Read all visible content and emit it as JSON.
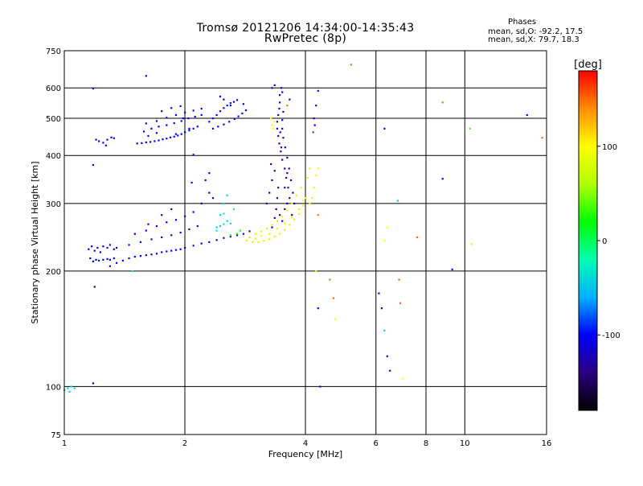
{
  "chart_data": {
    "type": "scatter",
    "title": "Tromsø 20121206 14:34:00-14:35:43",
    "subtitle": "RwPretec (8p)",
    "xlabel": "Frequency [MHz]",
    "ylabel": "Stationary phase Virtual Height [km]",
    "x_scale": "log",
    "y_scale": "log",
    "xlim": [
      1,
      16
    ],
    "ylim": [
      75,
      750
    ],
    "x_ticks": [
      1,
      2,
      4,
      6,
      8,
      10,
      16
    ],
    "y_ticks": [
      75,
      100,
      200,
      300,
      400,
      500,
      600,
      750
    ],
    "grid": true,
    "phase_stats": {
      "heading": "Phases",
      "line_o": "mean, sd,O: -92.2, 17.5",
      "line_x": "mean, sd,X: 79.7, 18.3"
    },
    "colorbar": {
      "label": "[deg]",
      "range": [
        -180,
        180
      ],
      "ticks": [
        100,
        0,
        -100
      ],
      "colormap": "rainbow",
      "colors": [
        "#000000",
        "#2b0080",
        "#0000ff",
        "#00b0ff",
        "#00ffb0",
        "#00ff00",
        "#b0ff00",
        "#ffff00",
        "#ff8c00",
        "#ff0000"
      ]
    },
    "point_format": "[frequency MHz, virtual height km, phase deg]",
    "points": [
      [
        1.0,
        98,
        -40
      ],
      [
        1.02,
        99,
        -40
      ],
      [
        1.04,
        100,
        -40
      ],
      [
        1.03,
        97,
        -40
      ],
      [
        1.06,
        99,
        -40
      ],
      [
        1.18,
        598,
        -100
      ],
      [
        1.18,
        378,
        -100
      ],
      [
        1.19,
        182,
        -110
      ],
      [
        1.18,
        102,
        -110
      ],
      [
        1.15,
        228,
        -100
      ],
      [
        1.17,
        232,
        -100
      ],
      [
        1.19,
        226,
        -100
      ],
      [
        1.21,
        230,
        -100
      ],
      [
        1.23,
        224,
        -100
      ],
      [
        1.25,
        232,
        -100
      ],
      [
        1.28,
        230,
        -100
      ],
      [
        1.3,
        234,
        -100
      ],
      [
        1.33,
        228,
        -100
      ],
      [
        1.16,
        216,
        -100
      ],
      [
        1.18,
        212,
        -100
      ],
      [
        1.2,
        214,
        -100
      ],
      [
        1.22,
        213,
        -100
      ],
      [
        1.25,
        214,
        -100
      ],
      [
        1.28,
        215,
        -100
      ],
      [
        1.3,
        214,
        -100
      ],
      [
        1.33,
        216,
        -100
      ],
      [
        1.2,
        440,
        -110
      ],
      [
        1.22,
        436,
        -110
      ],
      [
        1.25,
        432,
        -110
      ],
      [
        1.28,
        440,
        -110
      ],
      [
        1.31,
        446,
        -110
      ],
      [
        1.33,
        444,
        -110
      ],
      [
        1.27,
        425,
        -110
      ],
      [
        1.48,
        200,
        -30
      ],
      [
        1.6,
        645,
        -110
      ],
      [
        1.52,
        430,
        -100
      ],
      [
        1.56,
        431,
        -100
      ],
      [
        1.6,
        433,
        -100
      ],
      [
        1.64,
        434,
        -100
      ],
      [
        1.68,
        436,
        -100
      ],
      [
        1.72,
        438,
        -100
      ],
      [
        1.76,
        441,
        -100
      ],
      [
        1.8,
        443,
        -100
      ],
      [
        1.84,
        446,
        -100
      ],
      [
        1.88,
        448,
        -100
      ],
      [
        1.92,
        451,
        -100
      ],
      [
        1.96,
        455,
        -100
      ],
      [
        2.0,
        460,
        -100
      ],
      [
        2.05,
        465,
        -100
      ],
      [
        2.1,
        470,
        -100
      ],
      [
        2.15,
        476,
        -100
      ],
      [
        1.58,
        462,
        -100
      ],
      [
        1.65,
        470,
        -100
      ],
      [
        1.72,
        476,
        -100
      ],
      [
        1.8,
        480,
        -100
      ],
      [
        1.88,
        486,
        -100
      ],
      [
        1.96,
        492,
        -100
      ],
      [
        2.04,
        500,
        -100
      ],
      [
        2.12,
        505,
        -100
      ],
      [
        2.2,
        510,
        -100
      ],
      [
        1.6,
        485,
        -100
      ],
      [
        1.7,
        492,
        -100
      ],
      [
        1.8,
        502,
        -100
      ],
      [
        1.9,
        510,
        -100
      ],
      [
        2.0,
        518,
        -100
      ],
      [
        2.1,
        524,
        -100
      ],
      [
        2.2,
        530,
        -100
      ],
      [
        1.75,
        522,
        -100
      ],
      [
        1.85,
        532,
        -100
      ],
      [
        1.95,
        538,
        -100
      ],
      [
        2.05,
        470,
        -100
      ],
      [
        1.9,
        455,
        -100
      ],
      [
        1.7,
        458,
        -100
      ],
      [
        1.62,
        450,
        -100
      ],
      [
        1.98,
        500,
        -100
      ],
      [
        2.3,
        490,
        -100
      ],
      [
        2.35,
        500,
        -100
      ],
      [
        2.4,
        510,
        -100
      ],
      [
        2.45,
        522,
        -100
      ],
      [
        2.5,
        532,
        -100
      ],
      [
        2.55,
        540,
        -100
      ],
      [
        2.6,
        548,
        -100
      ],
      [
        2.65,
        552,
        -100
      ],
      [
        2.7,
        558,
        -100
      ],
      [
        2.35,
        470,
        -100
      ],
      [
        2.42,
        476,
        -100
      ],
      [
        2.5,
        482,
        -100
      ],
      [
        2.58,
        490,
        -100
      ],
      [
        2.66,
        498,
        -100
      ],
      [
        2.72,
        506,
        -100
      ],
      [
        2.78,
        515,
        -100
      ],
      [
        2.84,
        525,
        -100
      ],
      [
        2.5,
        560,
        -100
      ],
      [
        2.45,
        570,
        -100
      ],
      [
        2.6,
        540,
        -100
      ],
      [
        2.8,
        545,
        -100
      ],
      [
        2.1,
        402,
        -110
      ],
      [
        2.08,
        340,
        -110
      ],
      [
        1.3,
        206,
        -100
      ],
      [
        1.35,
        210,
        -100
      ],
      [
        1.4,
        213,
        -100
      ],
      [
        1.45,
        216,
        -100
      ],
      [
        1.5,
        218,
        -100
      ],
      [
        1.55,
        219,
        -100
      ],
      [
        1.6,
        220,
        -100
      ],
      [
        1.65,
        221,
        -100
      ],
      [
        1.7,
        222,
        -100
      ],
      [
        1.75,
        224,
        -100
      ],
      [
        1.8,
        225,
        -100
      ],
      [
        1.85,
        226,
        -100
      ],
      [
        1.9,
        227,
        -100
      ],
      [
        1.95,
        228,
        -100
      ],
      [
        2.0,
        230,
        -100
      ],
      [
        2.1,
        233,
        -100
      ],
      [
        2.2,
        236,
        -100
      ],
      [
        2.3,
        238,
        -100
      ],
      [
        2.4,
        241,
        -100
      ],
      [
        2.5,
        244,
        -100
      ],
      [
        2.6,
        246,
        -100
      ],
      [
        2.7,
        248,
        -100
      ],
      [
        2.8,
        250,
        -100
      ],
      [
        2.9,
        254,
        -100
      ],
      [
        1.35,
        230,
        -100
      ],
      [
        1.45,
        234,
        -100
      ],
      [
        1.55,
        238,
        -100
      ],
      [
        1.65,
        242,
        -100
      ],
      [
        1.75,
        245,
        -100
      ],
      [
        1.85,
        248,
        -100
      ],
      [
        1.95,
        252,
        -100
      ],
      [
        2.05,
        257,
        -100
      ],
      [
        2.15,
        262,
        -100
      ],
      [
        1.5,
        250,
        -100
      ],
      [
        1.6,
        255,
        -100
      ],
      [
        1.7,
        262,
        -100
      ],
      [
        1.8,
        268,
        -100
      ],
      [
        1.9,
        272,
        -100
      ],
      [
        2.0,
        278,
        -100
      ],
      [
        2.1,
        285,
        -100
      ],
      [
        1.62,
        265,
        -100
      ],
      [
        1.75,
        280,
        -100
      ],
      [
        1.85,
        290,
        -100
      ],
      [
        2.2,
        300,
        -100
      ],
      [
        2.3,
        320,
        -100
      ],
      [
        2.25,
        345,
        -100
      ],
      [
        2.3,
        360,
        -100
      ],
      [
        2.35,
        310,
        -100
      ],
      [
        2.4,
        260,
        -40
      ],
      [
        2.45,
        262,
        -40
      ],
      [
        2.5,
        265,
        -30
      ],
      [
        2.55,
        270,
        -40
      ],
      [
        2.6,
        266,
        -40
      ],
      [
        2.45,
        280,
        -40
      ],
      [
        2.5,
        300,
        -40
      ],
      [
        2.55,
        315,
        -40
      ],
      [
        2.65,
        290,
        -30
      ],
      [
        2.6,
        248,
        0
      ],
      [
        2.7,
        250,
        20
      ],
      [
        2.75,
        255,
        30
      ],
      [
        2.5,
        282,
        -20
      ],
      [
        2.4,
        255,
        -30
      ],
      [
        2.85,
        240,
        80
      ],
      [
        2.95,
        238,
        80
      ],
      [
        3.05,
        238,
        80
      ],
      [
        3.15,
        240,
        80
      ],
      [
        3.25,
        242,
        80
      ],
      [
        3.35,
        246,
        80
      ],
      [
        3.45,
        250,
        80
      ],
      [
        3.55,
        256,
        80
      ],
      [
        3.65,
        264,
        80
      ],
      [
        3.75,
        272,
        80
      ],
      [
        3.85,
        282,
        80
      ],
      [
        3.95,
        296,
        80
      ],
      [
        4.0,
        310,
        80
      ],
      [
        3.0,
        250,
        80
      ],
      [
        3.1,
        254,
        80
      ],
      [
        3.2,
        258,
        80
      ],
      [
        3.3,
        264,
        80
      ],
      [
        3.4,
        270,
        80
      ],
      [
        3.5,
        278,
        80
      ],
      [
        3.6,
        288,
        80
      ],
      [
        3.7,
        300,
        80
      ],
      [
        3.8,
        315,
        80
      ],
      [
        3.9,
        330,
        80
      ],
      [
        4.05,
        350,
        80
      ],
      [
        4.1,
        370,
        80
      ],
      [
        2.9,
        245,
        70
      ],
      [
        3.0,
        243,
        90
      ],
      [
        3.1,
        247,
        90
      ],
      [
        3.25,
        250,
        90
      ],
      [
        3.4,
        258,
        90
      ],
      [
        3.55,
        266,
        90
      ],
      [
        3.7,
        276,
        90
      ],
      [
        3.85,
        290,
        90
      ],
      [
        3.95,
        305,
        90
      ],
      [
        3.3,
        480,
        100
      ],
      [
        3.35,
        490,
        100
      ],
      [
        3.28,
        500,
        100
      ],
      [
        3.32,
        470,
        100
      ],
      [
        3.6,
        300,
        -120
      ],
      [
        3.65,
        310,
        -120
      ],
      [
        3.62,
        330,
        -120
      ],
      [
        3.58,
        350,
        -120
      ],
      [
        3.55,
        370,
        -120
      ],
      [
        3.5,
        390,
        -120
      ],
      [
        3.47,
        410,
        -120
      ],
      [
        3.44,
        430,
        -120
      ],
      [
        3.42,
        450,
        -120
      ],
      [
        3.4,
        470,
        -120
      ],
      [
        3.4,
        490,
        -120
      ],
      [
        3.42,
        510,
        -120
      ],
      [
        3.44,
        530,
        -120
      ],
      [
        3.45,
        550,
        -120
      ],
      [
        3.45,
        575,
        -120
      ],
      [
        3.48,
        600,
        -120
      ],
      [
        3.7,
        280,
        -120
      ],
      [
        3.75,
        300,
        -120
      ],
      [
        3.72,
        320,
        -120
      ],
      [
        3.68,
        345,
        -120
      ],
      [
        3.64,
        370,
        -120
      ],
      [
        3.6,
        395,
        -120
      ],
      [
        3.56,
        420,
        -120
      ],
      [
        3.52,
        445,
        -120
      ],
      [
        3.5,
        470,
        -120
      ],
      [
        3.5,
        495,
        -120
      ],
      [
        3.52,
        520,
        -120
      ],
      [
        3.3,
        260,
        -120
      ],
      [
        3.35,
        275,
        -120
      ],
      [
        3.38,
        290,
        -120
      ],
      [
        3.4,
        310,
        -120
      ],
      [
        3.42,
        330,
        -120
      ],
      [
        3.45,
        280,
        -120
      ],
      [
        3.5,
        270,
        -120
      ],
      [
        3.55,
        290,
        -120
      ],
      [
        3.2,
        300,
        -120
      ],
      [
        3.25,
        320,
        -120
      ],
      [
        3.3,
        345,
        -120
      ],
      [
        3.35,
        365,
        -120
      ],
      [
        3.28,
        380,
        -120
      ],
      [
        3.3,
        600,
        -120
      ],
      [
        3.35,
        610,
        -120
      ],
      [
        3.5,
        585,
        -100
      ],
      [
        3.6,
        540,
        150
      ],
      [
        3.65,
        560,
        -100
      ],
      [
        3.55,
        330,
        -130
      ],
      [
        3.6,
        360,
        -130
      ],
      [
        3.48,
        420,
        -130
      ],
      [
        3.46,
        460,
        -130
      ],
      [
        4.3,
        590,
        -100
      ],
      [
        4.25,
        540,
        -100
      ],
      [
        4.2,
        500,
        -100
      ],
      [
        4.22,
        480,
        -100
      ],
      [
        4.18,
        460,
        -80
      ],
      [
        4.3,
        370,
        100
      ],
      [
        4.25,
        355,
        100
      ],
      [
        4.2,
        330,
        90
      ],
      [
        4.15,
        310,
        100
      ],
      [
        4.1,
        300,
        100
      ],
      [
        4.3,
        280,
        150
      ],
      [
        4.25,
        200,
        80
      ],
      [
        4.3,
        160,
        -100
      ],
      [
        4.35,
        100,
        -100
      ],
      [
        4.6,
        190,
        150
      ],
      [
        4.7,
        170,
        150
      ],
      [
        4.75,
        150,
        100
      ],
      [
        5.2,
        690,
        150
      ],
      [
        6.3,
        470,
        -100
      ],
      [
        6.4,
        260,
        100
      ],
      [
        6.3,
        240,
        100
      ],
      [
        6.1,
        175,
        -110
      ],
      [
        6.2,
        160,
        -110
      ],
      [
        6.3,
        140,
        -40
      ],
      [
        6.4,
        120,
        -110
      ],
      [
        6.5,
        110,
        -110
      ],
      [
        6.8,
        305,
        -40
      ],
      [
        6.85,
        190,
        150
      ],
      [
        6.9,
        165,
        150
      ],
      [
        7.0,
        105,
        100
      ],
      [
        7.6,
        245,
        150
      ],
      [
        8.8,
        550,
        150
      ],
      [
        8.8,
        348,
        -100
      ],
      [
        9.3,
        202,
        -100
      ],
      [
        10.3,
        470,
        40
      ],
      [
        10.4,
        235,
        80
      ],
      [
        14.3,
        510,
        -100
      ],
      [
        15.6,
        445,
        150
      ]
    ]
  }
}
